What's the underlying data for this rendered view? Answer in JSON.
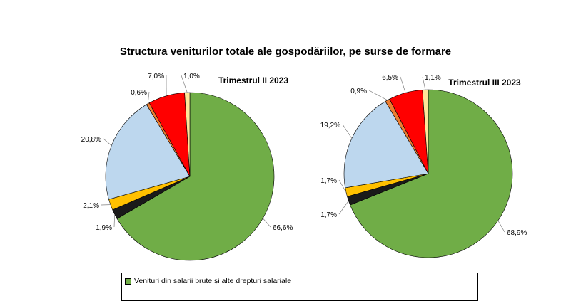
{
  "title": "Structura veniturilor totale ale gospodăriilor, pe surse de formare",
  "colors": {
    "salarii": "#70ad47",
    "s2": "#1a1a1a",
    "s3": "#ffc000",
    "s4": "#bdd7ee",
    "s5": "#ed7d31",
    "s6": "#ff0000",
    "s7": "#ffe699"
  },
  "legend": [
    {
      "label": "Venituri  din salarii brute și alte drepturi salariale",
      "color": "#70ad47"
    }
  ],
  "chart_data": [
    {
      "type": "pie",
      "title": "Trimestrul  II 2023",
      "slices": [
        {
          "value": 66.6,
          "label": "66,6%",
          "color": "#70ad47"
        },
        {
          "value": 1.9,
          "label": "1,9%",
          "color": "#1a1a1a"
        },
        {
          "value": 2.1,
          "label": "2,1%",
          "color": "#ffc000"
        },
        {
          "value": 20.8,
          "label": "20,8%",
          "color": "#bdd7ee"
        },
        {
          "value": 0.6,
          "label": "0,6%",
          "color": "#ed7d31"
        },
        {
          "value": 7.0,
          "label": "7,0%",
          "color": "#ff0000"
        },
        {
          "value": 1.0,
          "label": "1,0%",
          "color": "#ffe699"
        }
      ]
    },
    {
      "type": "pie",
      "title": "Trimestrul  III 2023",
      "slices": [
        {
          "value": 68.9,
          "label": "68,9%",
          "color": "#70ad47"
        },
        {
          "value": 1.7,
          "label": "1,7%",
          "color": "#1a1a1a"
        },
        {
          "value": 1.7,
          "label": "1,7%",
          "color": "#ffc000"
        },
        {
          "value": 19.2,
          "label": "19,2%",
          "color": "#bdd7ee"
        },
        {
          "value": 0.9,
          "label": "0,9%",
          "color": "#ed7d31"
        },
        {
          "value": 6.5,
          "label": "6,5%",
          "color": "#ff0000"
        },
        {
          "value": 1.1,
          "label": "1,1%",
          "color": "#ffe699"
        }
      ]
    }
  ]
}
